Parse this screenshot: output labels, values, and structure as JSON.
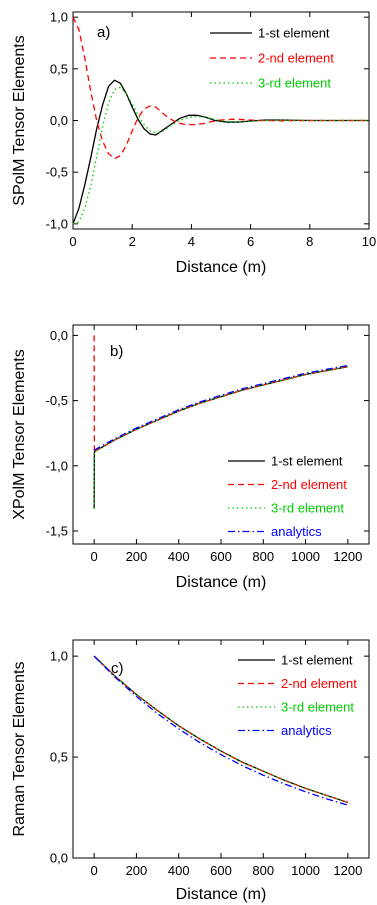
{
  "chart_data": [
    {
      "type": "line",
      "panel_label": "a)",
      "xlabel": "Distance (m)",
      "ylabel": "SPolM Tensor Elements",
      "xlim": [
        0,
        10
      ],
      "ylim": [
        -1.05,
        1.05
      ],
      "xticks": [
        0,
        2,
        4,
        6,
        8,
        10
      ],
      "xtick_labels": [
        "0",
        "2",
        "4",
        "6",
        "8",
        "10"
      ],
      "yticks": [
        -1.0,
        -0.5,
        0.0,
        0.5,
        1.0
      ],
      "ytick_labels": [
        "-1,0",
        "-0,5",
        "0,0",
        "0,5",
        "1,0"
      ],
      "legend_position": "top-right",
      "series": [
        {
          "name": "1-st element",
          "color": "#000000",
          "dash": "solid",
          "x": [
            0,
            0.2,
            0.4,
            0.6,
            0.8,
            1.0,
            1.2,
            1.4,
            1.6,
            1.8,
            2.0,
            2.2,
            2.4,
            2.6,
            2.8,
            3.0,
            3.3,
            3.6,
            3.9,
            4.2,
            4.5,
            4.8,
            5.2,
            5.6,
            6.0,
            6.5,
            7.0,
            8.0,
            9.0,
            10.0
          ],
          "y": [
            -1.0,
            -0.85,
            -0.62,
            -0.36,
            -0.08,
            0.15,
            0.33,
            0.39,
            0.36,
            0.26,
            0.13,
            0.01,
            -0.08,
            -0.13,
            -0.14,
            -0.1,
            -0.04,
            0.02,
            0.05,
            0.05,
            0.03,
            0.0,
            -0.015,
            -0.015,
            -0.005,
            0.005,
            0.005,
            0.0,
            0.0,
            0.0
          ]
        },
        {
          "name": "2-nd element",
          "color": "#ff0000",
          "dash": "dashed",
          "x": [
            0,
            0.2,
            0.4,
            0.6,
            0.8,
            1.0,
            1.2,
            1.4,
            1.6,
            1.8,
            2.0,
            2.2,
            2.4,
            2.6,
            2.8,
            3.0,
            3.2,
            3.5,
            3.8,
            4.1,
            4.4,
            4.7,
            5.0,
            5.4,
            5.8,
            6.3,
            7.0,
            8.0,
            9.0,
            10.0
          ],
          "y": [
            1.0,
            0.88,
            0.6,
            0.28,
            0.0,
            -0.2,
            -0.32,
            -0.37,
            -0.34,
            -0.24,
            -0.1,
            0.03,
            0.11,
            0.14,
            0.13,
            0.08,
            0.03,
            -0.02,
            -0.04,
            -0.04,
            -0.03,
            -0.01,
            0.005,
            0.012,
            0.008,
            0.0,
            -0.003,
            0.0,
            0.0,
            0.0
          ]
        },
        {
          "name": "3-rd element",
          "color": "#00cc00",
          "dash": "dotted",
          "x": [
            0,
            0.2,
            0.4,
            0.6,
            0.8,
            1.0,
            1.2,
            1.4,
            1.6,
            1.8,
            2.0,
            2.2,
            2.4,
            2.6,
            2.8,
            3.0,
            3.3,
            3.6,
            3.9,
            4.2,
            4.5,
            4.8,
            5.2,
            5.6,
            6.0,
            6.5,
            7.0,
            8.0,
            9.0,
            10.0
          ],
          "y": [
            -1.0,
            -0.98,
            -0.85,
            -0.63,
            -0.35,
            -0.06,
            0.17,
            0.3,
            0.32,
            0.26,
            0.16,
            0.05,
            -0.04,
            -0.1,
            -0.12,
            -0.11,
            -0.05,
            0.0,
            0.03,
            0.04,
            0.03,
            0.01,
            -0.01,
            -0.015,
            -0.008,
            0.0,
            0.003,
            0.0,
            0.0,
            0.0
          ]
        }
      ]
    },
    {
      "type": "line",
      "panel_label": "b)",
      "xlabel": "Distance (m)",
      "ylabel": "XPolM Tensor Elements",
      "xlim": [
        -100,
        1300
      ],
      "ylim": [
        -1.6,
        0.08
      ],
      "xticks": [
        0,
        200,
        400,
        600,
        800,
        1000,
        1200
      ],
      "xtick_labels": [
        "0",
        "200",
        "400",
        "600",
        "800",
        "1000",
        "1200"
      ],
      "yticks": [
        -1.5,
        -1.0,
        -0.5,
        0.0
      ],
      "ytick_labels": [
        "-1,5",
        "-1,0",
        "-0,5",
        "0,0"
      ],
      "legend_position": "bottom-right",
      "series": [
        {
          "name": "1-st element",
          "color": "#000000",
          "dash": "solid",
          "x": [
            0,
            0.5,
            1,
            3,
            100,
            200,
            300,
            400,
            500,
            600,
            700,
            800,
            900,
            1000,
            1100,
            1200
          ],
          "y": [
            -1.33,
            -1.1,
            -0.9,
            -0.89,
            -0.8,
            -0.72,
            -0.65,
            -0.58,
            -0.52,
            -0.47,
            -0.42,
            -0.38,
            -0.34,
            -0.3,
            -0.27,
            -0.24
          ]
        },
        {
          "name": "2-nd element",
          "color": "#ff0000",
          "dash": "dashed",
          "x": [
            0,
            0.5,
            1,
            3,
            100,
            200,
            300,
            400,
            500,
            600,
            700,
            800,
            900,
            1000,
            1100,
            1200
          ],
          "y": [
            0.0,
            -0.45,
            -0.9,
            -0.89,
            -0.8,
            -0.72,
            -0.65,
            -0.58,
            -0.52,
            -0.47,
            -0.42,
            -0.38,
            -0.34,
            -0.3,
            -0.27,
            -0.24
          ]
        },
        {
          "name": "3-rd element",
          "color": "#00cc00",
          "dash": "dotted",
          "x": [
            0,
            0.5,
            1,
            3,
            100,
            200,
            300,
            400,
            500,
            600,
            700,
            800,
            900,
            1000,
            1100,
            1200
          ],
          "y": [
            -1.33,
            -1.1,
            -0.9,
            -0.89,
            -0.8,
            -0.72,
            -0.65,
            -0.58,
            -0.52,
            -0.47,
            -0.42,
            -0.38,
            -0.34,
            -0.3,
            -0.27,
            -0.24
          ]
        },
        {
          "name": "analytics",
          "color": "#0000ff",
          "dash": "dashdot",
          "x": [
            0,
            100,
            200,
            300,
            400,
            500,
            600,
            700,
            800,
            900,
            1000,
            1100,
            1200
          ],
          "y": [
            -0.88,
            -0.79,
            -0.71,
            -0.64,
            -0.57,
            -0.51,
            -0.46,
            -0.41,
            -0.37,
            -0.33,
            -0.29,
            -0.26,
            -0.23
          ]
        }
      ]
    },
    {
      "type": "line",
      "panel_label": "c)",
      "xlabel": "Distance (m)",
      "ylabel": "Raman Tensor Elements",
      "xlim": [
        -100,
        1300
      ],
      "ylim": [
        0.0,
        1.08
      ],
      "xticks": [
        0,
        200,
        400,
        600,
        800,
        1000,
        1200
      ],
      "xtick_labels": [
        "0",
        "200",
        "400",
        "600",
        "800",
        "1000",
        "1200"
      ],
      "yticks": [
        0.0,
        0.5,
        1.0
      ],
      "ytick_labels": [
        "0,0",
        "0,5",
        "1,0"
      ],
      "legend_position": "top-right",
      "series": [
        {
          "name": "1-st element",
          "color": "#000000",
          "dash": "solid",
          "x": [
            0,
            100,
            200,
            300,
            400,
            500,
            600,
            700,
            800,
            900,
            1000,
            1100,
            1200
          ],
          "y": [
            1.0,
            0.9,
            0.81,
            0.73,
            0.655,
            0.59,
            0.53,
            0.475,
            0.43,
            0.385,
            0.345,
            0.31,
            0.275
          ]
        },
        {
          "name": "2-nd element",
          "color": "#ff0000",
          "dash": "dashed",
          "x": [
            0,
            100,
            200,
            300,
            400,
            500,
            600,
            700,
            800,
            900,
            1000,
            1100,
            1200
          ],
          "y": [
            1.0,
            0.9,
            0.81,
            0.73,
            0.655,
            0.59,
            0.53,
            0.475,
            0.43,
            0.385,
            0.345,
            0.31,
            0.275
          ]
        },
        {
          "name": "3-rd element",
          "color": "#00cc00",
          "dash": "dotted",
          "x": [
            0,
            100,
            200,
            300,
            400,
            500,
            600,
            700,
            800,
            900,
            1000,
            1100,
            1200
          ],
          "y": [
            1.0,
            0.9,
            0.81,
            0.73,
            0.655,
            0.59,
            0.53,
            0.475,
            0.43,
            0.385,
            0.345,
            0.31,
            0.275
          ]
        },
        {
          "name": "analytics",
          "color": "#0000ff",
          "dash": "dashdot",
          "x": [
            0,
            100,
            200,
            300,
            400,
            500,
            600,
            700,
            800,
            900,
            1000,
            1100,
            1200
          ],
          "y": [
            1.0,
            0.895,
            0.8,
            0.715,
            0.64,
            0.572,
            0.512,
            0.458,
            0.41,
            0.367,
            0.328,
            0.293,
            0.262
          ]
        }
      ]
    }
  ]
}
